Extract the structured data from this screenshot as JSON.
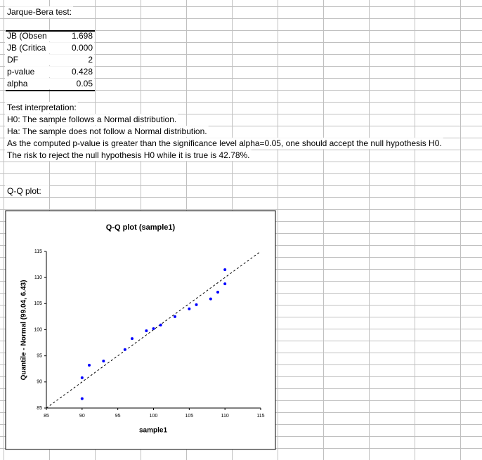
{
  "sheet": {
    "title": "Jarque-Bera test:",
    "table": {
      "rows": [
        [
          "JB (Obsen",
          "1.698"
        ],
        [
          "JB (Critica",
          "0.000"
        ],
        [
          "DF",
          "2"
        ],
        [
          "p-value",
          "0.428"
        ],
        [
          "alpha",
          "0.05"
        ]
      ]
    },
    "interpretation": [
      "Test interpretation:",
      "H0: The sample follows a Normal distribution.",
      "Ha: The sample does not follow a Normal distribution.",
      "As the computed p-value is greater than the significance level alpha=0.05, one should accept the null hypothesis H0.",
      "The risk to reject the null hypothesis H0 while it is true is 42.78%."
    ],
    "qq_heading": "Q-Q plot:"
  },
  "chart_data": {
    "type": "scatter",
    "title": "Q-Q plot (sample1)",
    "xlabel": "sample1",
    "ylabel": "Quantile - Normal (99.04, 6.43)",
    "x": [
      90,
      90,
      91,
      93,
      96,
      97,
      99,
      100,
      101,
      103,
      105,
      106,
      108,
      109,
      110,
      110
    ],
    "values": [
      86.8,
      90.8,
      93.2,
      94.0,
      96.2,
      98.3,
      99.8,
      100.2,
      100.9,
      102.5,
      104.0,
      104.8,
      105.9,
      107.2,
      108.8,
      111.5
    ],
    "color": "#0000ff",
    "xlim": [
      85,
      115
    ],
    "ylim": [
      85,
      115
    ],
    "xticks": [
      85,
      90,
      95,
      100,
      105,
      110,
      115
    ],
    "yticks": [
      85,
      90,
      95,
      100,
      105,
      110,
      115
    ],
    "diagonal": true
  }
}
